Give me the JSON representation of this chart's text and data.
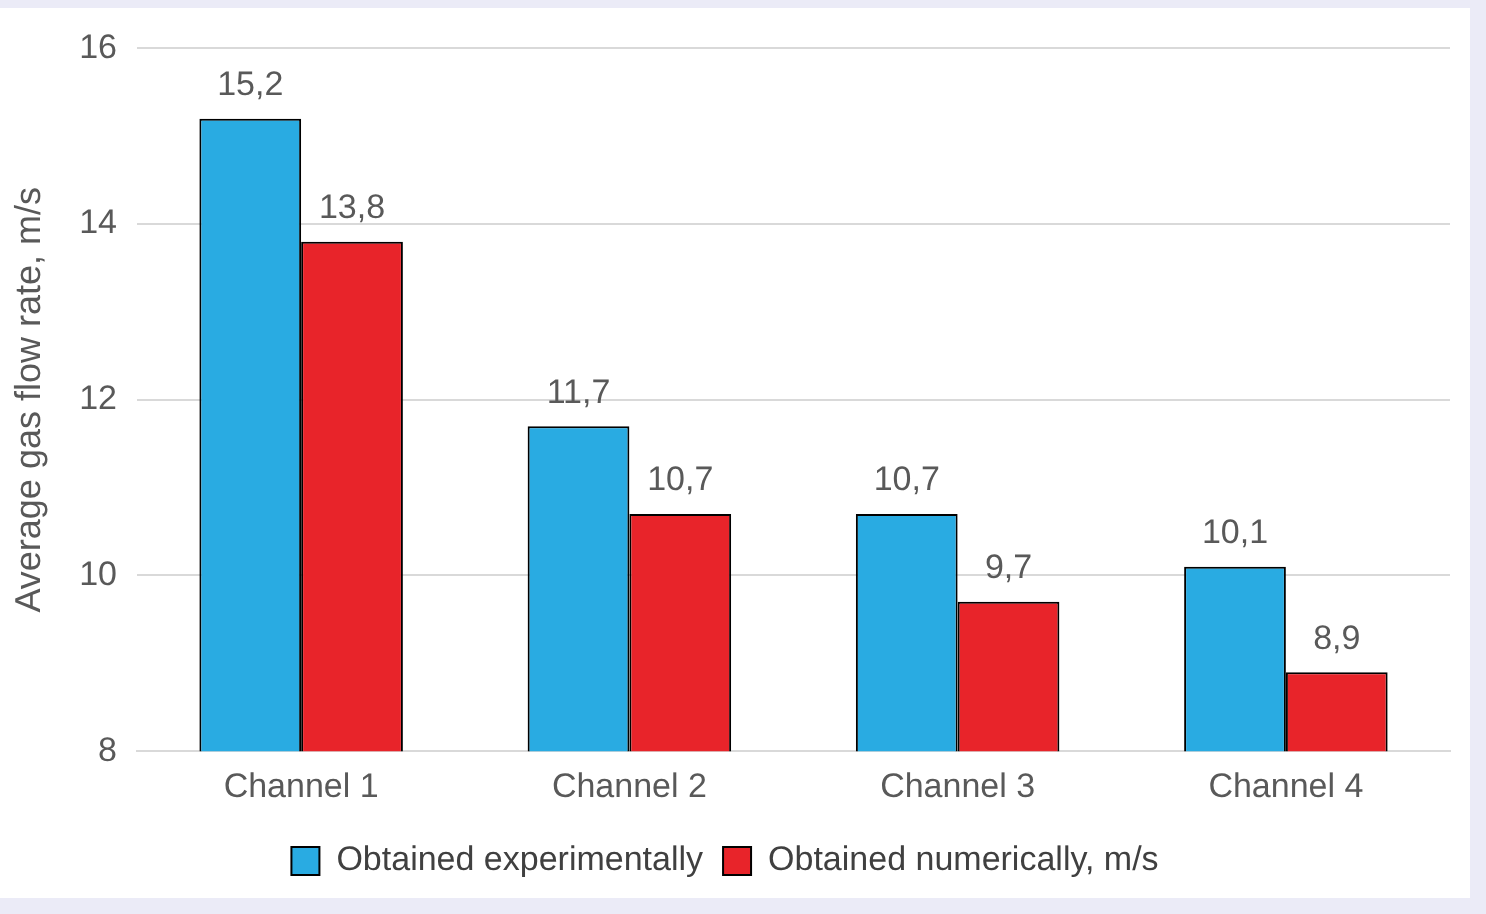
{
  "chart_data": {
    "type": "bar",
    "ylabel": "Average gas flow rate, m/s",
    "categories": [
      "Channel 1",
      "Channel 2",
      "Channel 3",
      "Channel 4"
    ],
    "series": [
      {
        "name": "Obtained experimentally",
        "color": "#29abe2",
        "values": [
          15.2,
          11.7,
          10.7,
          10.1
        ],
        "value_labels": [
          "15,2",
          "11,7",
          "10,7",
          "10,1"
        ]
      },
      {
        "name": "Obtained numerically, m/s",
        "color": "#e8242a",
        "values": [
          13.8,
          10.7,
          9.7,
          8.9
        ],
        "value_labels": [
          "13,8",
          "10,7",
          "9,7",
          "8,9"
        ]
      }
    ],
    "ylim": [
      8,
      16
    ],
    "yticks": [
      8,
      10,
      12,
      14,
      16
    ],
    "grid": "y",
    "legend": "bottom"
  }
}
